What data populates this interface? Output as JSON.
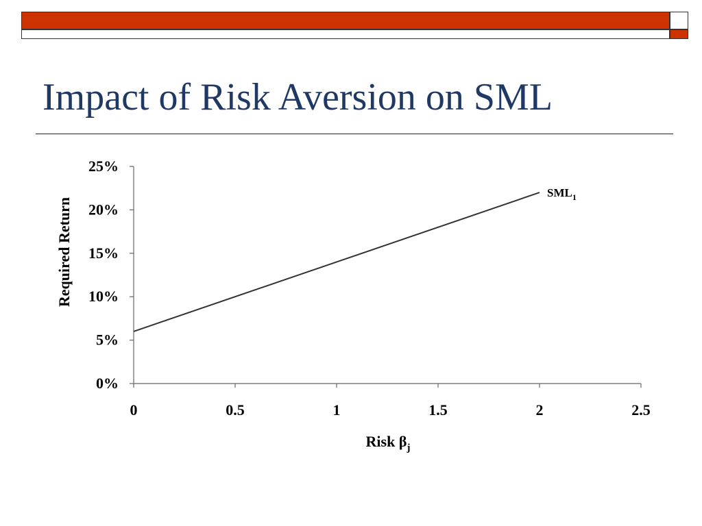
{
  "slide": {
    "title": "Impact of Risk Aversion on SML",
    "colors": {
      "accent_orange": "#CC3300",
      "title_text": "#1F3864",
      "line": "#333333"
    }
  },
  "chart_data": {
    "type": "line",
    "title": "",
    "xlabel": "Risk β",
    "xlabel_subscript": "j",
    "ylabel": "Required Return",
    "xlim": [
      0,
      2.5
    ],
    "ylim": [
      0,
      0.25
    ],
    "x_ticks": [
      0,
      0.5,
      1,
      1.5,
      2,
      2.5
    ],
    "x_tick_labels": [
      "0",
      "0.5",
      "1",
      "1.5",
      "2",
      "2.5"
    ],
    "y_ticks": [
      0,
      0.05,
      0.1,
      0.15,
      0.2,
      0.25
    ],
    "y_tick_labels": [
      "0%",
      "5%",
      "10%",
      "15%",
      "20%",
      "25%"
    ],
    "grid": false,
    "legend": "none",
    "series": [
      {
        "name": "SML",
        "name_subscript": "1",
        "x": [
          0,
          2
        ],
        "y": [
          0.06,
          0.22
        ]
      }
    ]
  }
}
